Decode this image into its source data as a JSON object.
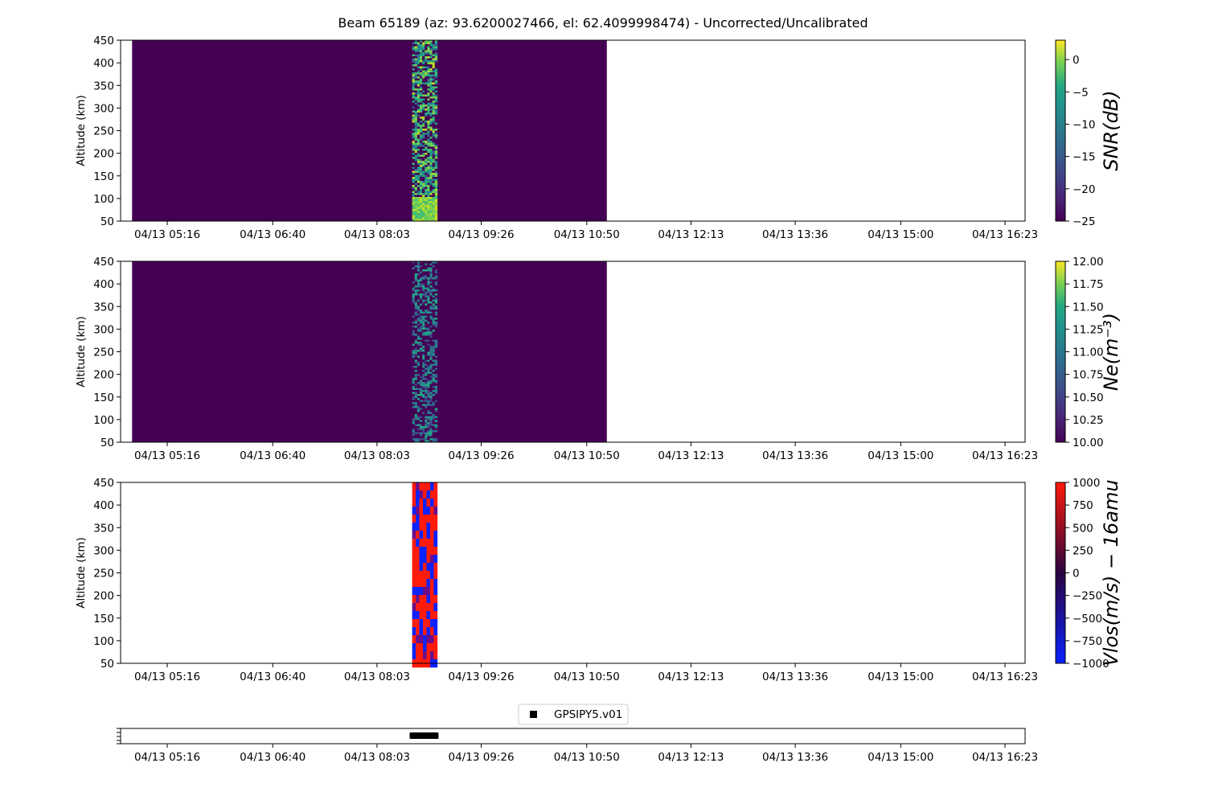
{
  "title": "Beam 65189 (az: 93.6200027466, el: 62.4099998474) - Uncorrected/Uncalibrated",
  "x_tick_labels": [
    "04/13 05:16",
    "04/13 06:40",
    "04/13 08:03",
    "04/13 09:26",
    "04/13 10:50",
    "04/13 12:13",
    "04/13 13:36",
    "04/13 15:00",
    "04/13 16:23"
  ],
  "chart_data": [
    {
      "type": "heatmap",
      "ylabel": "Altitude (km)",
      "y_ticks": [
        50,
        100,
        150,
        200,
        250,
        300,
        350,
        400,
        450
      ],
      "ylim": [
        50,
        450
      ],
      "colormap": "viridis",
      "colorbar_label": "SNR(dB)",
      "colorbar_ticks": [
        0,
        -5,
        -10,
        -15,
        -20,
        -25
      ],
      "colorbar_range": [
        -25,
        3
      ],
      "background_value": -25,
      "data_extent_x": [
        "04/13 04:48",
        "04/13 11:06"
      ],
      "active_interval_x": [
        "04/13 08:31",
        "04/13 08:51"
      ],
      "active_level_above_100km": -8,
      "active_level_below_100km": 1
    },
    {
      "type": "heatmap",
      "ylabel": "Altitude (km)",
      "y_ticks": [
        50,
        100,
        150,
        200,
        250,
        300,
        350,
        400,
        450
      ],
      "ylim": [
        50,
        450
      ],
      "colormap": "viridis",
      "colorbar_label": "Ne(m⁻³)",
      "colorbar_ticks": [
        "12.00",
        "11.75",
        "11.50",
        "11.25",
        "11.00",
        "10.75",
        "10.50",
        "10.25",
        "10.00"
      ],
      "colorbar_range": [
        10,
        12
      ],
      "background_value": 10,
      "data_extent_x": [
        "04/13 04:48",
        "04/13 11:06"
      ],
      "active_interval_x": [
        "04/13 08:31",
        "04/13 08:51"
      ],
      "active_level": 10.8
    },
    {
      "type": "heatmap",
      "ylabel": "Altitude (km)",
      "y_ticks": [
        50,
        100,
        150,
        200,
        250,
        300,
        350,
        400,
        450
      ],
      "ylim": [
        50,
        450
      ],
      "colormap": "blue-black-red",
      "colorbar_label": "Vlos(m/s) − 16amu",
      "colorbar_ticks": [
        1000,
        750,
        500,
        250,
        0,
        -250,
        -500,
        -750,
        -1000
      ],
      "colorbar_range": [
        -1000,
        1000
      ],
      "active_interval_x": [
        "04/13 08:31",
        "04/13 08:51"
      ],
      "value_range_in_interval": [
        -1000,
        1000
      ]
    },
    {
      "type": "scatter",
      "legend": [
        "GPSIPY5.v01"
      ],
      "legend_placement": "top-center",
      "marker": "square",
      "series": [
        {
          "name": "GPSIPY5.v01",
          "x_range": [
            "04/13 08:29",
            "04/13 08:52"
          ]
        }
      ]
    }
  ],
  "colors": {
    "viridis_low": "#440154",
    "viridis_high": "#fde725",
    "vlos_low": "#0a22ff",
    "vlos_mid": "#2b0440",
    "vlos_high": "#ff1a0a",
    "marker": "#000000"
  }
}
